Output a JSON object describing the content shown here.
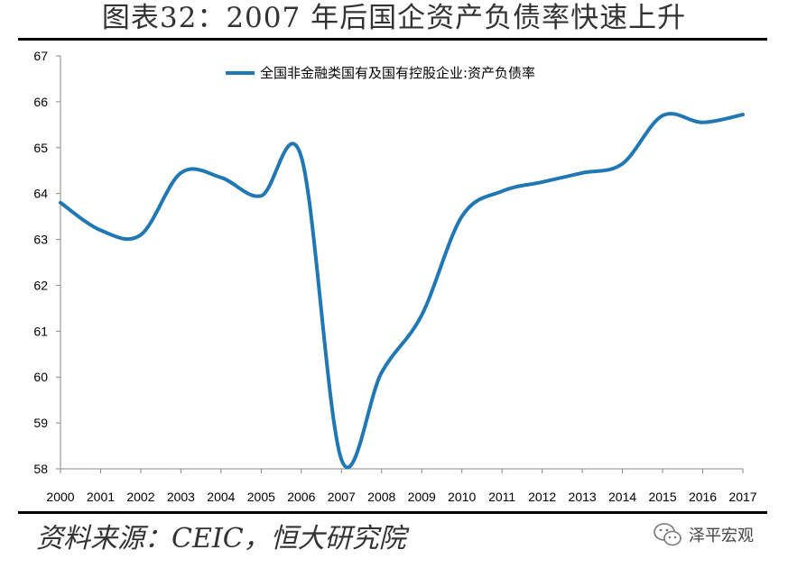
{
  "figure": {
    "title": "图表32：2007 年后国企资产负债率快速上升",
    "source": "资料来源：CEIC，恒大研究院",
    "watermark": "泽平宏观",
    "watermark_icon": "wechat-icon"
  },
  "chart_data": {
    "type": "line",
    "title": "",
    "xlabel": "",
    "ylabel": "",
    "ylim": [
      58,
      67
    ],
    "yticks": [
      58,
      59,
      60,
      61,
      62,
      63,
      64,
      65,
      66,
      67
    ],
    "categories": [
      "2000",
      "2001",
      "2002",
      "2003",
      "2004",
      "2005",
      "2006",
      "2007",
      "2008",
      "2009",
      "2010",
      "2011",
      "2012",
      "2013",
      "2014",
      "2015",
      "2016",
      "2017"
    ],
    "series": [
      {
        "name": "全国非金融类国有及国有控股企业:资产负债率",
        "color": "#1f77b4",
        "values": [
          63.8,
          63.2,
          63.1,
          64.45,
          64.35,
          63.95,
          64.8,
          58.2,
          60.1,
          61.35,
          63.5,
          64.05,
          64.25,
          64.45,
          64.65,
          65.7,
          65.55,
          65.72
        ]
      }
    ],
    "legend_position": "top-center",
    "grid": false
  }
}
